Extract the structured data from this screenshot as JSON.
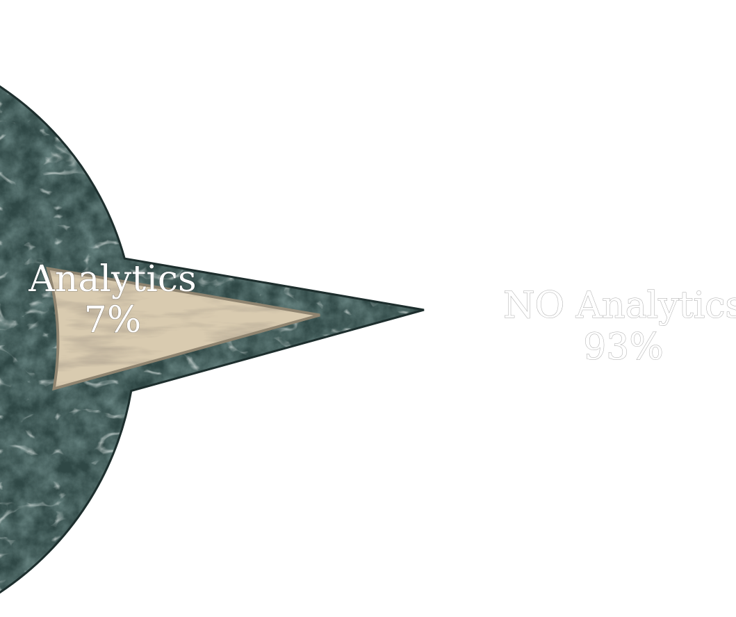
{
  "chart_data": {
    "type": "pie",
    "slices": [
      {
        "label": "NO Analytics",
        "value": 93,
        "value_label": "93%",
        "color": "#2f4745",
        "vein_color": "#dfe8e4"
      },
      {
        "label": "Analytics",
        "value": 7,
        "value_label": "7%",
        "color": "#d9cbb0",
        "vein_color": "#6d5d48"
      }
    ],
    "exploded_slice": "Analytics",
    "title": "",
    "legend": "none"
  }
}
